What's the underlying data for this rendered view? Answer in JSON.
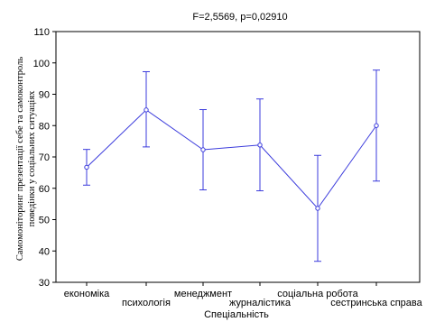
{
  "chart_data": {
    "type": "line",
    "title": "F=2,5569, p=0,02910",
    "xlabel": "Спеціальність",
    "ylabel_lines": [
      "Самомоніторинг презентації себе та самоконтроль",
      "поведінки у соціальних ситуаціях"
    ],
    "categories": [
      "економіка",
      "психологія",
      "менеджмент",
      "журналістика",
      "соціальна робота",
      "сестринська справа"
    ],
    "series": [
      {
        "values": [
          66.7,
          85.0,
          72.3,
          73.8,
          53.6,
          80.0
        ],
        "error_low": [
          61.0,
          73.2,
          59.5,
          59.2,
          36.7,
          62.3
        ],
        "error_high": [
          72.4,
          97.2,
          85.1,
          88.5,
          70.5,
          97.7
        ]
      }
    ],
    "ylim": [
      30,
      110
    ],
    "yticks": [
      30,
      40,
      50,
      60,
      70,
      80,
      90,
      100,
      110
    ],
    "grid": false,
    "line_color": "#3b3bdc"
  }
}
